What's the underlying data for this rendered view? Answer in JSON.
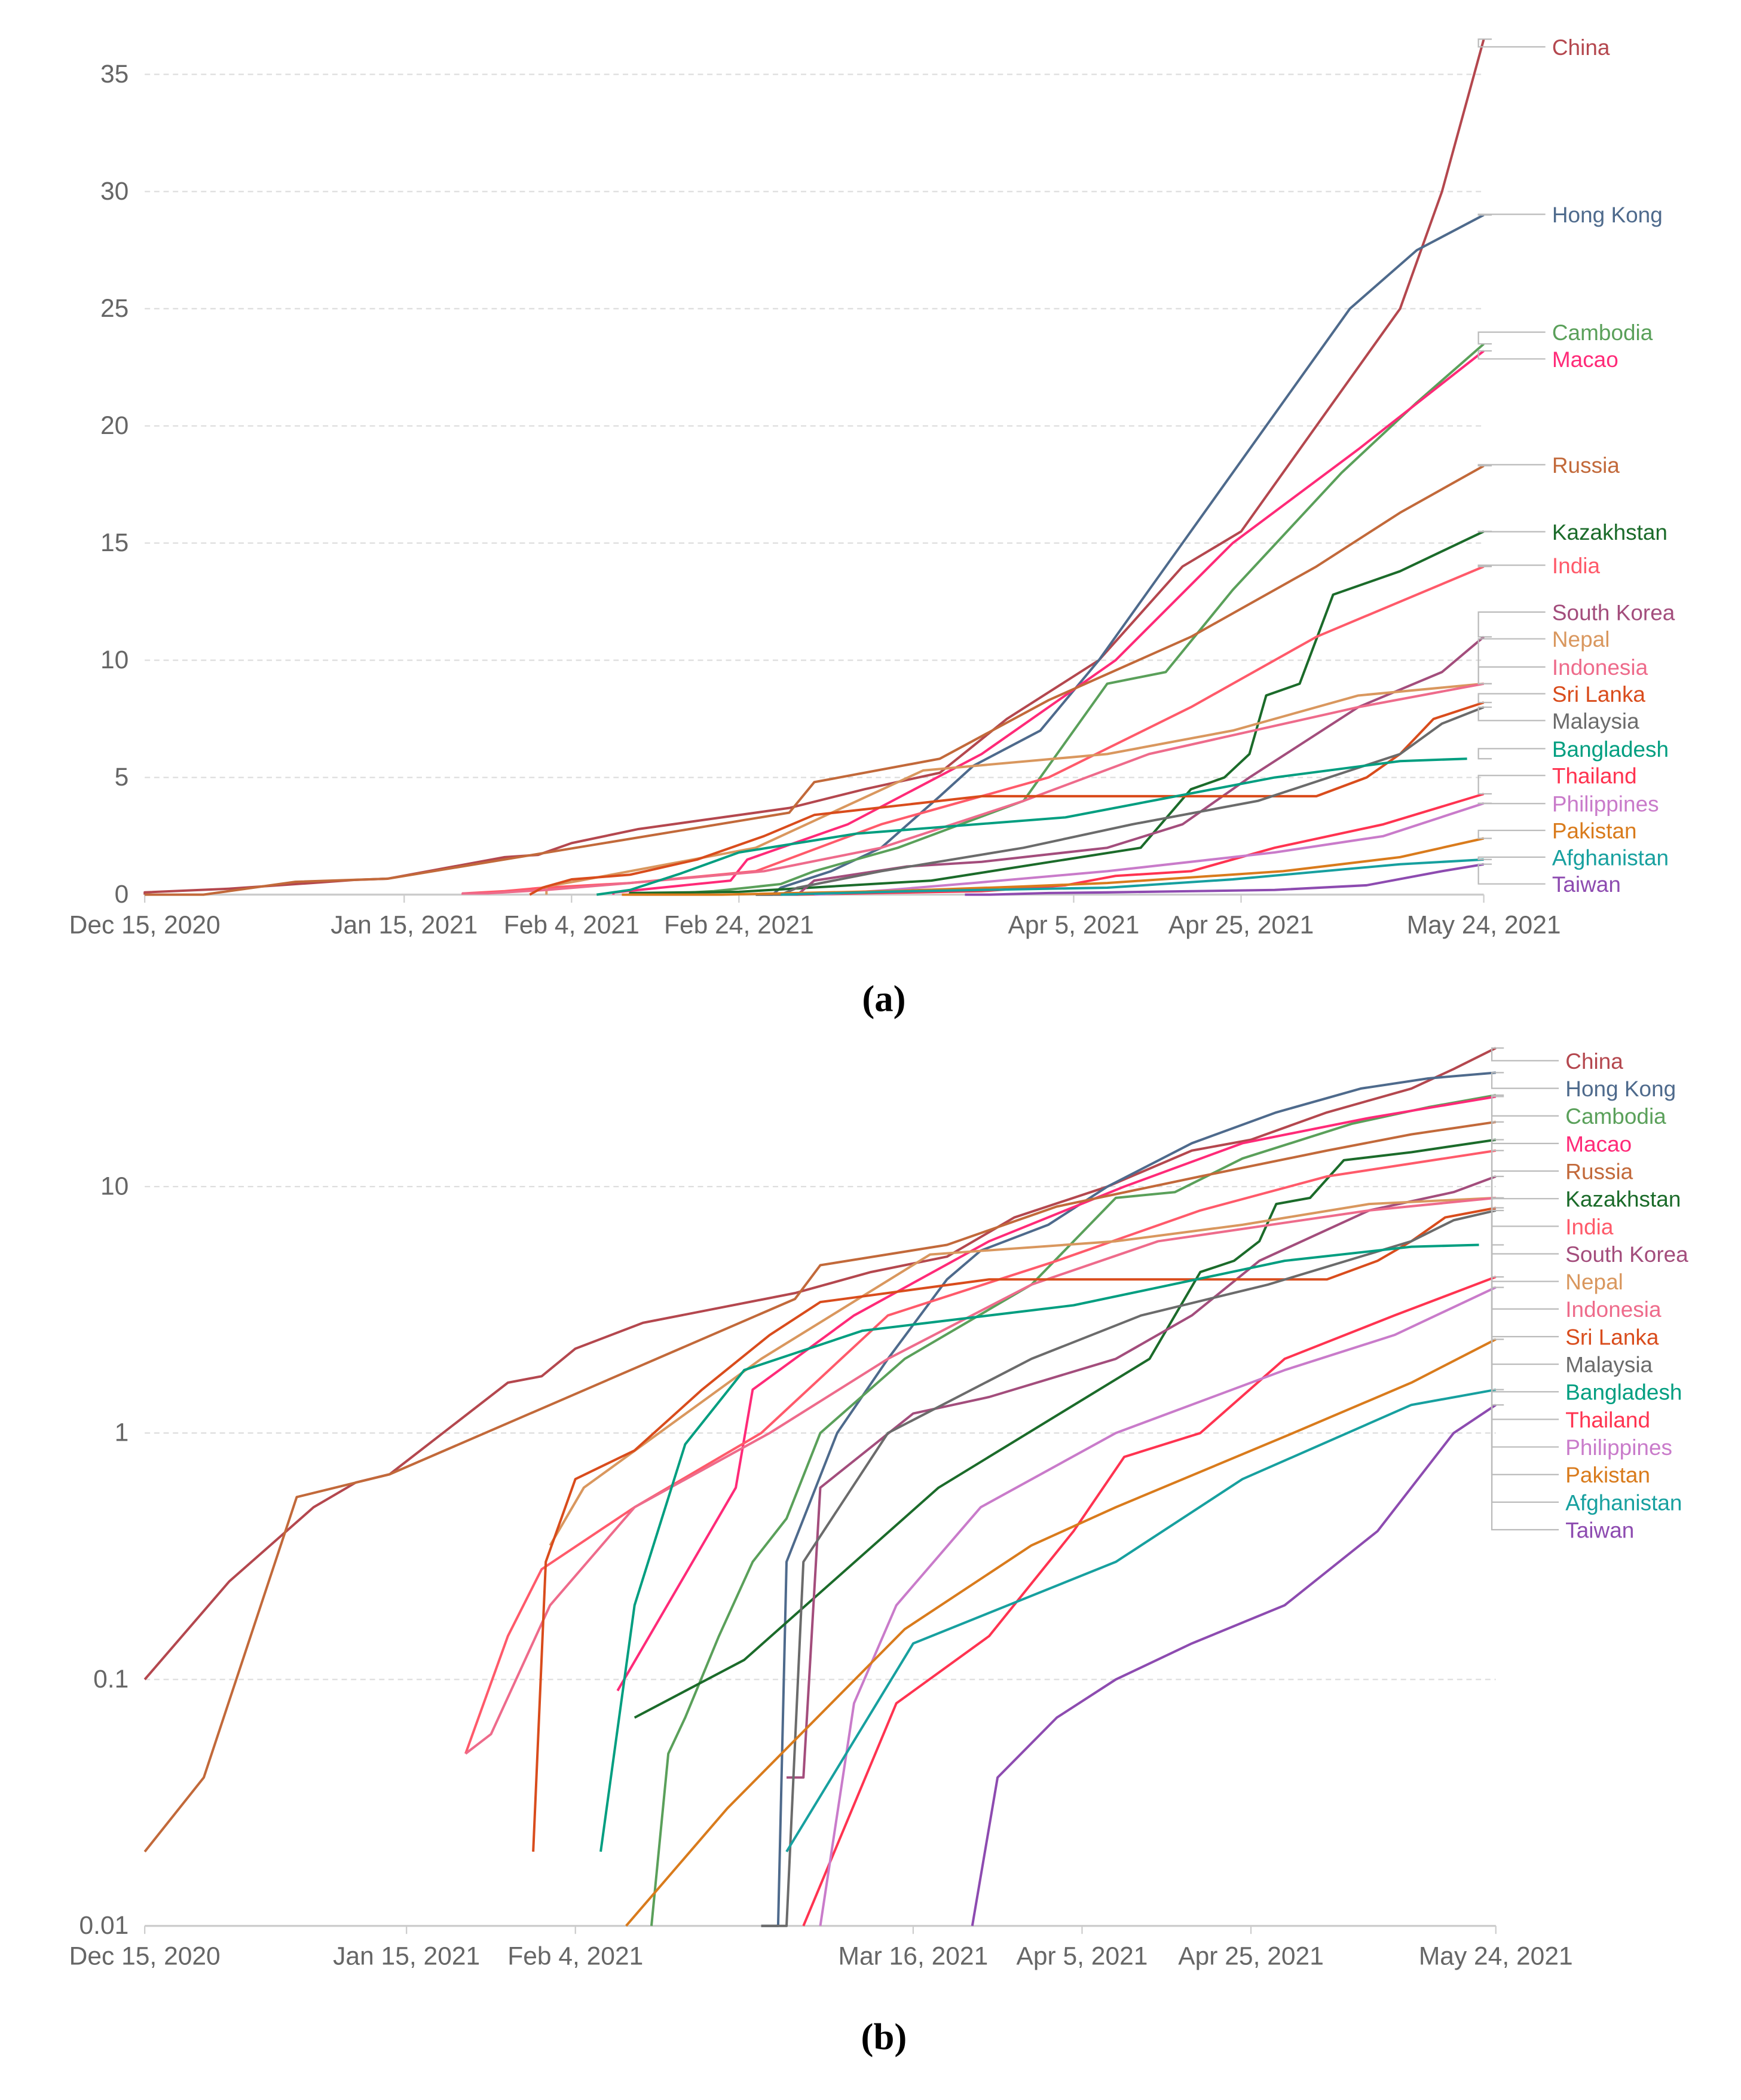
{
  "chart_data": [
    {
      "panel": "a",
      "caption": "(a)",
      "type": "line",
      "yscale": "linear",
      "ylim": [
        0,
        36.5
      ],
      "yticks": [
        "0",
        "5",
        "10",
        "15",
        "20",
        "25",
        "30",
        "35"
      ],
      "ytick_values": [
        0,
        5,
        10,
        15,
        20,
        25,
        30,
        35
      ],
      "xlim_days": [
        0,
        160
      ],
      "xticks": [
        {
          "label": "Dec 15, 2020",
          "day": 0
        },
        {
          "label": "Jan 15, 2021",
          "day": 31
        },
        {
          "label": "Feb 4, 2021",
          "day": 51
        },
        {
          "label": "Feb 24, 2021",
          "day": 71
        },
        {
          "label": "Apr 5, 2021",
          "day": 111
        },
        {
          "label": "Apr 25, 2021",
          "day": 131
        },
        {
          "label": "May 24, 2021",
          "day": 160
        }
      ],
      "grid": true,
      "legend": "right, direct labels"
    },
    {
      "panel": "b",
      "caption": "(b)",
      "type": "line",
      "yscale": "log",
      "ylim": [
        0.01,
        40
      ],
      "yticks": [
        "0.01",
        "0.1",
        "1",
        "10"
      ],
      "ytick_values": [
        0.01,
        0.1,
        1,
        10
      ],
      "xlim_days": [
        0,
        160
      ],
      "xticks": [
        {
          "label": "Dec 15, 2020",
          "day": 0
        },
        {
          "label": "Jan 15, 2021",
          "day": 31
        },
        {
          "label": "Feb 4, 2021",
          "day": 51
        },
        {
          "label": "Mar 16, 2021",
          "day": 91
        },
        {
          "label": "Apr 5, 2021",
          "day": 111
        },
        {
          "label": "Apr 25, 2021",
          "day": 131
        },
        {
          "label": "May 24, 2021",
          "day": 160
        }
      ],
      "grid": true,
      "legend": "right, direct labels"
    }
  ],
  "x_unit": "days since Dec 15, 2020",
  "series": [
    {
      "name": "China",
      "color": "#b4474e",
      "points": [
        [
          0,
          0.1
        ],
        [
          10,
          0.25
        ],
        [
          20,
          0.5
        ],
        [
          25,
          0.63
        ],
        [
          29,
          0.68
        ],
        [
          43,
          1.6
        ],
        [
          47,
          1.7
        ],
        [
          51,
          2.2
        ],
        [
          59,
          2.8
        ],
        [
          77,
          3.7
        ],
        [
          86,
          4.5
        ],
        [
          95,
          5.2
        ],
        [
          103,
          7.5
        ],
        [
          114,
          10
        ],
        [
          124,
          14
        ],
        [
          131,
          15.5
        ],
        [
          140,
          20
        ],
        [
          150,
          25
        ],
        [
          155,
          30
        ],
        [
          160,
          36.5
        ]
      ]
    },
    {
      "name": "Hong Kong",
      "color": "#4e6a8c",
      "points": [
        [
          73,
          0.01
        ],
        [
          75,
          0.01
        ],
        [
          76,
          0.3
        ],
        [
          82,
          1
        ],
        [
          88,
          2
        ],
        [
          95,
          4.2
        ],
        [
          99,
          5.5
        ],
        [
          107,
          7
        ],
        [
          114,
          10
        ],
        [
          124,
          15
        ],
        [
          134,
          20
        ],
        [
          144,
          25
        ],
        [
          152,
          27.5
        ],
        [
          160,
          29
        ]
      ]
    },
    {
      "name": "Cambodia",
      "color": "#5aa05a",
      "points": [
        [
          60,
          0.01
        ],
        [
          62,
          0.05
        ],
        [
          64,
          0.07
        ],
        [
          68,
          0.15
        ],
        [
          72,
          0.3
        ],
        [
          76,
          0.45
        ],
        [
          80,
          1
        ],
        [
          90,
          2
        ],
        [
          105,
          4
        ],
        [
          115,
          9
        ],
        [
          122,
          9.5
        ],
        [
          130,
          13
        ],
        [
          143,
          18
        ],
        [
          152,
          21
        ],
        [
          160,
          23.5
        ]
      ]
    },
    {
      "name": "Macao",
      "color": "#ff2a78",
      "points": [
        [
          56,
          0.09
        ],
        [
          70,
          0.6
        ],
        [
          72,
          1.5
        ],
        [
          84,
          3
        ],
        [
          100,
          6
        ],
        [
          116,
          10
        ],
        [
          130,
          15
        ],
        [
          145,
          19
        ],
        [
          160,
          23.2
        ]
      ]
    },
    {
      "name": "Russia",
      "color": "#c2693a",
      "points": [
        [
          0,
          0.02
        ],
        [
          7,
          0.04
        ],
        [
          18,
          0.55
        ],
        [
          29,
          0.68
        ],
        [
          77,
          3.5
        ],
        [
          80,
          4.8
        ],
        [
          95,
          5.8
        ],
        [
          108,
          8.3
        ],
        [
          125,
          11
        ],
        [
          140,
          14
        ],
        [
          150,
          16.3
        ],
        [
          160,
          18.3
        ]
      ]
    },
    {
      "name": "Kazakhstan",
      "color": "#1b6b2a",
      "points": [
        [
          58,
          0.07
        ],
        [
          71,
          0.12
        ],
        [
          94,
          0.6
        ],
        [
          119,
          2
        ],
        [
          125,
          4.5
        ],
        [
          129,
          5
        ],
        [
          132,
          6
        ],
        [
          134,
          8.5
        ],
        [
          138,
          9
        ],
        [
          142,
          12.8
        ],
        [
          150,
          13.8
        ],
        [
          160,
          15.5
        ]
      ]
    },
    {
      "name": "India",
      "color": "#ff5a6a",
      "points": [
        [
          38,
          0.05
        ],
        [
          43,
          0.15
        ],
        [
          47,
          0.28
        ],
        [
          58,
          0.5
        ],
        [
          73,
          1
        ],
        [
          88,
          3
        ],
        [
          108,
          5
        ],
        [
          125,
          8
        ],
        [
          140,
          11
        ],
        [
          160,
          14
        ]
      ]
    },
    {
      "name": "South Korea",
      "color": "#a34d7c",
      "points": [
        [
          76,
          0.04
        ],
        [
          78,
          0.04
        ],
        [
          80,
          0.6
        ],
        [
          91,
          1.2
        ],
        [
          100,
          1.4
        ],
        [
          115,
          2
        ],
        [
          124,
          3
        ],
        [
          132,
          5
        ],
        [
          145,
          8
        ],
        [
          155,
          9.5
        ],
        [
          160,
          11
        ]
      ]
    },
    {
      "name": "Nepal",
      "color": "#d9975e",
      "points": [
        [
          48,
          0.35
        ],
        [
          52,
          0.6
        ],
        [
          73,
          2
        ],
        [
          93,
          5.3
        ],
        [
          115,
          6
        ],
        [
          130,
          7
        ],
        [
          145,
          8.5
        ],
        [
          160,
          9
        ]
      ]
    },
    {
      "name": "Indonesia",
      "color": "#ee6b8b",
      "points": [
        [
          38,
          0.05
        ],
        [
          41,
          0.06
        ],
        [
          48,
          0.2
        ],
        [
          58,
          0.5
        ],
        [
          74,
          1
        ],
        [
          88,
          2
        ],
        [
          105,
          4
        ],
        [
          120,
          6
        ],
        [
          145,
          8
        ],
        [
          160,
          9
        ]
      ]
    },
    {
      "name": "Sri Lanka",
      "color": "#d94c1c",
      "points": [
        [
          46,
          0.02
        ],
        [
          47.5,
          0.3
        ],
        [
          51,
          0.65
        ],
        [
          58,
          0.85
        ],
        [
          66,
          1.5
        ],
        [
          74,
          2.5
        ],
        [
          80,
          3.4
        ],
        [
          100,
          4.2
        ],
        [
          140,
          4.2
        ],
        [
          146,
          5
        ],
        [
          150,
          6
        ],
        [
          154,
          7.5
        ],
        [
          160,
          8.2
        ]
      ]
    },
    {
      "name": "Malaysia",
      "color": "#6b6b6b",
      "points": [
        [
          73,
          0.01
        ],
        [
          76,
          0.01
        ],
        [
          78,
          0.3
        ],
        [
          88,
          1
        ],
        [
          105,
          2
        ],
        [
          118,
          3
        ],
        [
          133,
          4
        ],
        [
          150,
          6
        ],
        [
          155,
          7.3
        ],
        [
          160,
          8
        ]
      ]
    },
    {
      "name": "Bangladesh",
      "color": "#009e80",
      "points": [
        [
          54,
          0.02
        ],
        [
          58,
          0.2
        ],
        [
          64,
          0.9
        ],
        [
          71,
          1.8
        ],
        [
          85,
          2.6
        ],
        [
          110,
          3.3
        ],
        [
          135,
          5
        ],
        [
          150,
          5.7
        ],
        [
          158,
          5.8
        ]
      ]
    },
    {
      "name": "Thailand",
      "color": "#ff3350",
      "points": [
        [
          78,
          0.01
        ],
        [
          89,
          0.08
        ],
        [
          100,
          0.15
        ],
        [
          110,
          0.4
        ],
        [
          116,
          0.8
        ],
        [
          125,
          1
        ],
        [
          135,
          2
        ],
        [
          148,
          3
        ],
        [
          160,
          4.3
        ]
      ]
    },
    {
      "name": "Philippines",
      "color": "#c97bca",
      "points": [
        [
          80,
          0.01
        ],
        [
          84,
          0.08
        ],
        [
          89,
          0.2
        ],
        [
          99,
          0.5
        ],
        [
          115,
          1
        ],
        [
          135,
          1.8
        ],
        [
          148,
          2.5
        ],
        [
          160,
          3.9
        ]
      ]
    },
    {
      "name": "Pakistan",
      "color": "#d97b1c",
      "points": [
        [
          57,
          0.01
        ],
        [
          69,
          0.03
        ],
        [
          90,
          0.16
        ],
        [
          105,
          0.35
        ],
        [
          115,
          0.5
        ],
        [
          136,
          1
        ],
        [
          150,
          1.6
        ],
        [
          160,
          2.4
        ]
      ]
    },
    {
      "name": "Afghanistan",
      "color": "#17a09f",
      "points": [
        [
          76,
          0.02
        ],
        [
          91,
          0.14
        ],
        [
          115,
          0.3
        ],
        [
          130,
          0.65
        ],
        [
          150,
          1.3
        ],
        [
          160,
          1.5
        ]
      ]
    },
    {
      "name": "Taiwan",
      "color": "#8d4bb0",
      "points": [
        [
          98,
          0.01
        ],
        [
          101,
          0.04
        ],
        [
          108,
          0.07
        ],
        [
          115,
          0.1
        ],
        [
          124,
          0.14
        ],
        [
          135,
          0.2
        ],
        [
          146,
          0.4
        ],
        [
          155,
          1
        ],
        [
          160,
          1.3
        ]
      ]
    }
  ]
}
